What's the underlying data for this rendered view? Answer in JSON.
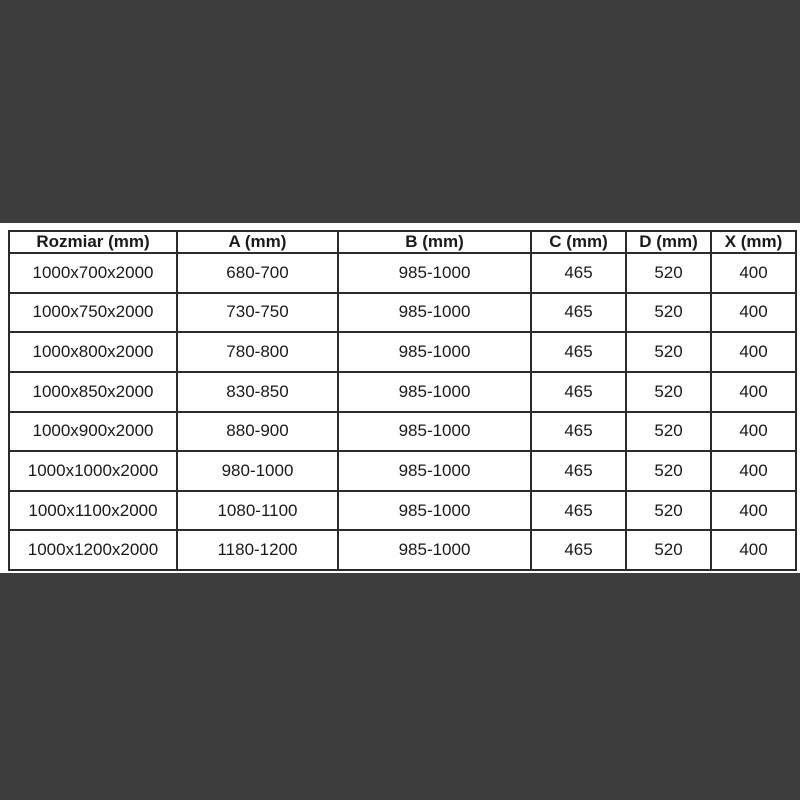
{
  "page": {
    "background_color": "#3d3d3d",
    "panel_color": "#fefefe"
  },
  "table": {
    "border_color": "#2b2b2b",
    "text_color": "#1a1a1a",
    "columns": [
      "Rozmiar (mm)",
      "A (mm)",
      "B (mm)",
      "C (mm)",
      "D (mm)",
      "X (mm)"
    ],
    "rows": [
      [
        "1000x700x2000",
        "680-700",
        "985-1000",
        "465",
        "520",
        "400"
      ],
      [
        "1000x750x2000",
        "730-750",
        "985-1000",
        "465",
        "520",
        "400"
      ],
      [
        "1000x800x2000",
        "780-800",
        "985-1000",
        "465",
        "520",
        "400"
      ],
      [
        "1000x850x2000",
        "830-850",
        "985-1000",
        "465",
        "520",
        "400"
      ],
      [
        "1000x900x2000",
        "880-900",
        "985-1000",
        "465",
        "520",
        "400"
      ],
      [
        "1000x1000x2000",
        "980-1000",
        "985-1000",
        "465",
        "520",
        "400"
      ],
      [
        "1000x1100x2000",
        "1080-1100",
        "985-1000",
        "465",
        "520",
        "400"
      ],
      [
        "1000x1200x2000",
        "1180-1200",
        "985-1000",
        "465",
        "520",
        "400"
      ]
    ]
  }
}
